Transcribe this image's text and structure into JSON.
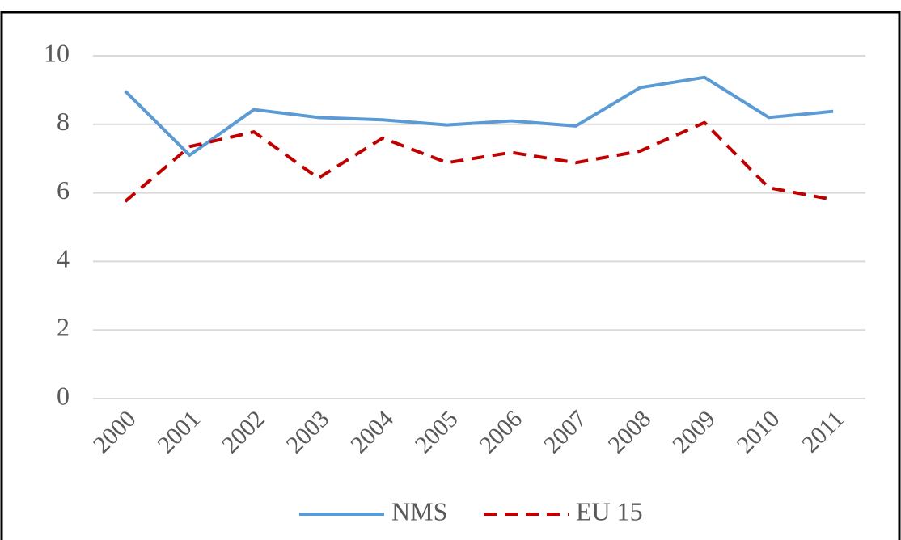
{
  "chart_data": {
    "type": "line",
    "categories": [
      "2000",
      "2001",
      "2002",
      "2003",
      "2004",
      "2005",
      "2006",
      "2007",
      "2008",
      "2009",
      "2010",
      "2011"
    ],
    "series": [
      {
        "name": "NMS",
        "color": "#5b9bd5",
        "dash": "solid",
        "values": [
          8.97,
          7.1,
          8.43,
          8.2,
          8.13,
          7.98,
          8.1,
          7.95,
          9.07,
          9.37,
          8.2,
          8.38
        ]
      },
      {
        "name": "EU 15",
        "color": "#c00000",
        "dash": "dashed",
        "values": [
          5.75,
          7.35,
          7.78,
          6.43,
          7.6,
          6.88,
          7.18,
          6.88,
          7.22,
          8.05,
          6.15,
          5.8
        ]
      }
    ],
    "ylim": [
      0,
      10
    ],
    "yticks": [
      0,
      2,
      4,
      6,
      8,
      10
    ],
    "grid": true,
    "legend": "bottom"
  }
}
